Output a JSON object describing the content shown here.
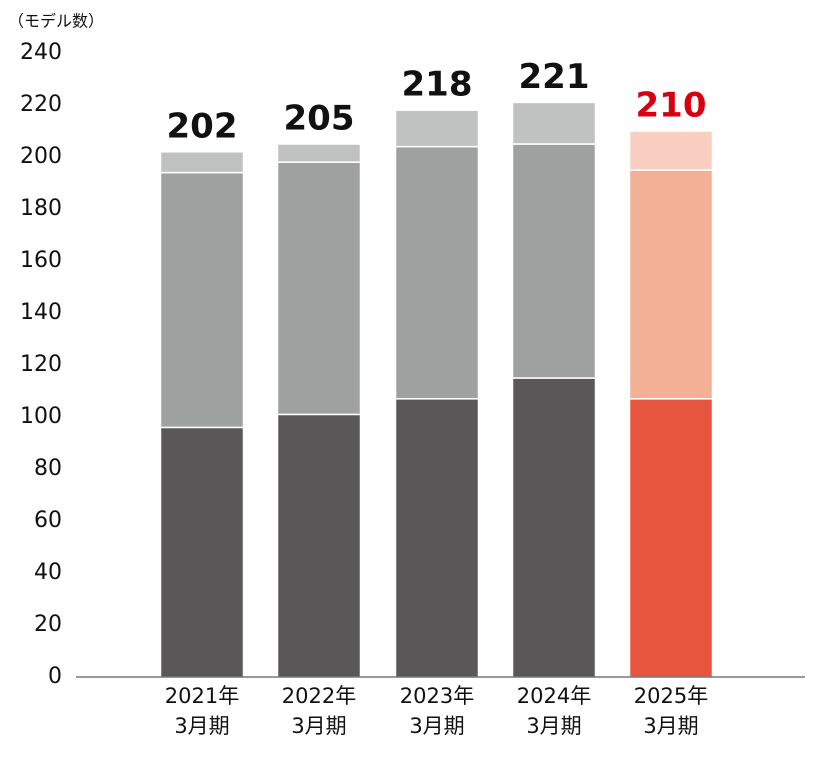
{
  "chart_data": {
    "type": "stacked-bar",
    "y_label": "（モデル数）",
    "categories": [
      [
        "2021年",
        "3月期"
      ],
      [
        "2022年",
        "3月期"
      ],
      [
        "2023年",
        "3月期"
      ],
      [
        "2024年",
        "3月期"
      ],
      [
        "2025年",
        "3月期"
      ]
    ],
    "series": [
      {
        "colors": [
          "#595757",
          "#595757",
          "#595757",
          "#595757",
          "#e8553e"
        ],
        "values": [
          96,
          101,
          107,
          115,
          107
        ]
      },
      {
        "colors": [
          "#9fa0a0",
          "#9fa0a0",
          "#9fa0a0",
          "#9fa0a0",
          "#f3b096"
        ],
        "values": [
          98,
          97,
          97,
          90,
          88
        ]
      },
      {
        "colors": [
          "#c0c1c1",
          "#c0c1c1",
          "#c0c1c1",
          "#c0c1c1",
          "#f8cfc0"
        ],
        "values": [
          8,
          7,
          14,
          16,
          15
        ]
      }
    ],
    "totals": [
      202,
      205,
      218,
      221,
      210
    ],
    "total_colors": [
      "#111111",
      "#111111",
      "#111111",
      "#111111",
      "#d7000f"
    ],
    "ylim": [
      0,
      240
    ],
    "yticks": [
      0,
      20,
      40,
      60,
      80,
      100,
      120,
      140,
      160,
      180,
      200,
      220,
      240
    ]
  }
}
